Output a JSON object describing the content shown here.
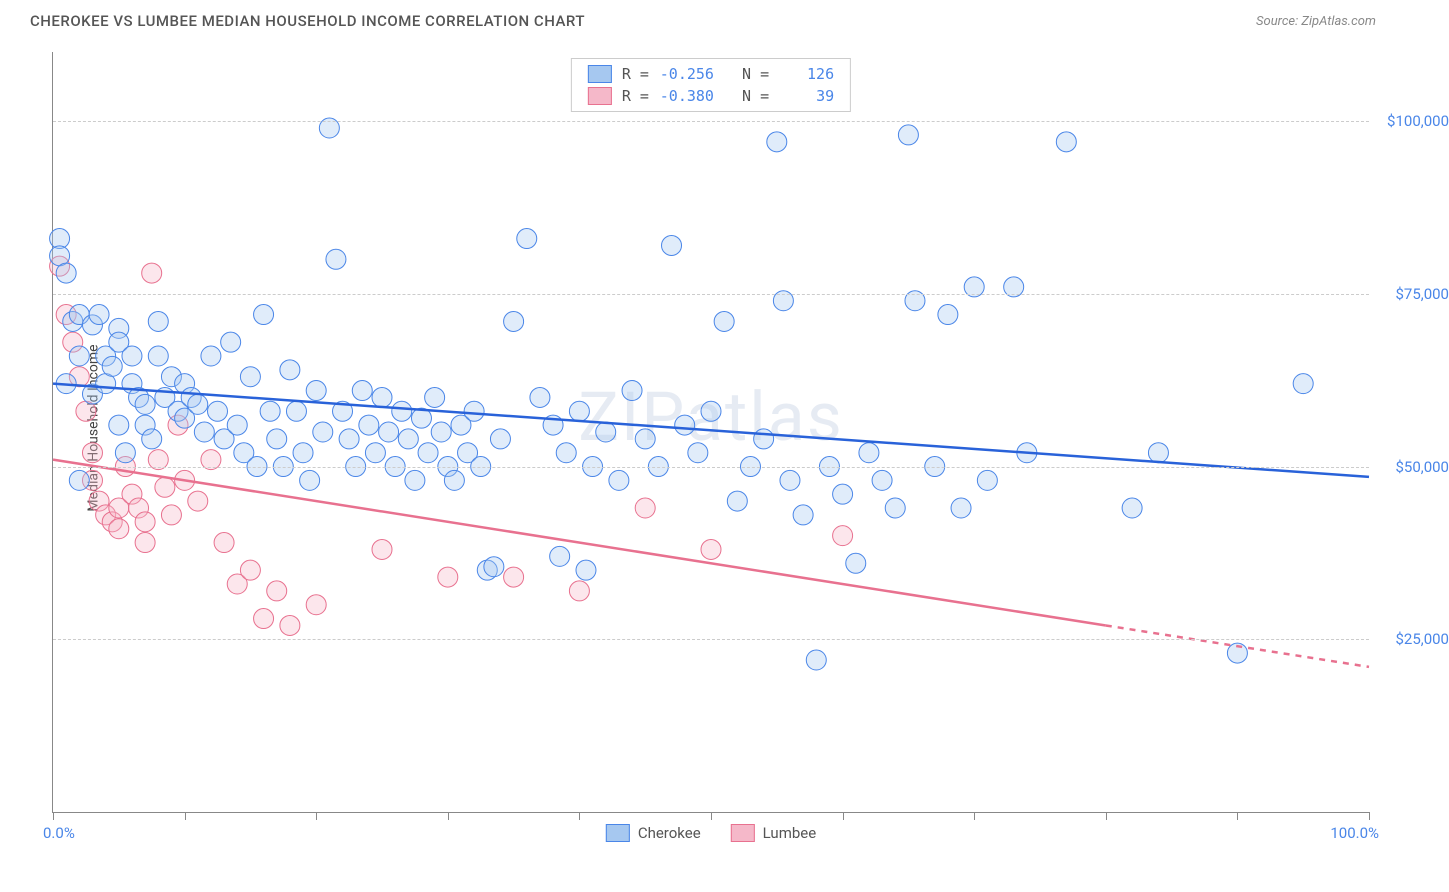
{
  "header": {
    "title": "CHEROKEE VS LUMBEE MEDIAN HOUSEHOLD INCOME CORRELATION CHART",
    "source": "Source: ZipAtlas.com"
  },
  "watermark": "ZIPatlas",
  "chart": {
    "type": "scatter",
    "ylabel": "Median Household Income",
    "xlim": [
      0,
      100
    ],
    "ylim": [
      0,
      110000
    ],
    "xtick_start_label": "0.0%",
    "xtick_end_label": "100.0%",
    "xticks": [
      0,
      10,
      20,
      30,
      40,
      50,
      60,
      70,
      80,
      90,
      100
    ],
    "yticks": [
      {
        "value": 25000,
        "label": "$25,000"
      },
      {
        "value": 50000,
        "label": "$50,000"
      },
      {
        "value": 75000,
        "label": "$75,000"
      },
      {
        "value": 100000,
        "label": "$100,000"
      }
    ],
    "grid_color": "#cccccc",
    "background_color": "#ffffff",
    "marker_radius": 10,
    "marker_opacity": 0.35,
    "line_width": 2.5,
    "series": {
      "cherokee": {
        "label": "Cherokee",
        "fill_color": "#a6c8f0",
        "stroke_color": "#4a86e8",
        "line_color": "#2962d9",
        "R": "-0.256",
        "N": "126",
        "regression": {
          "x1": 0,
          "y1": 62000,
          "x2": 100,
          "y2": 48500
        },
        "points": [
          [
            0.5,
            83000
          ],
          [
            0.5,
            80500
          ],
          [
            1,
            62000
          ],
          [
            1,
            78000
          ],
          [
            1.5,
            71000
          ],
          [
            2,
            72000
          ],
          [
            2,
            66000
          ],
          [
            2,
            48000
          ],
          [
            3,
            70500
          ],
          [
            3,
            60500
          ],
          [
            3.5,
            72000
          ],
          [
            4,
            66000
          ],
          [
            4,
            62000
          ],
          [
            4.5,
            64500
          ],
          [
            5,
            70000
          ],
          [
            5,
            68000
          ],
          [
            5,
            56000
          ],
          [
            5.5,
            52000
          ],
          [
            6,
            66000
          ],
          [
            6,
            62000
          ],
          [
            6.5,
            60000
          ],
          [
            7,
            59000
          ],
          [
            7,
            56000
          ],
          [
            7.5,
            54000
          ],
          [
            8,
            71000
          ],
          [
            8,
            66000
          ],
          [
            8.5,
            60000
          ],
          [
            9,
            63000
          ],
          [
            9.5,
            58000
          ],
          [
            10,
            62000
          ],
          [
            10,
            57000
          ],
          [
            10.5,
            60000
          ],
          [
            11,
            59000
          ],
          [
            11.5,
            55000
          ],
          [
            12,
            66000
          ],
          [
            12.5,
            58000
          ],
          [
            13,
            54000
          ],
          [
            13.5,
            68000
          ],
          [
            14,
            56000
          ],
          [
            14.5,
            52000
          ],
          [
            15,
            63000
          ],
          [
            15.5,
            50000
          ],
          [
            16,
            72000
          ],
          [
            16.5,
            58000
          ],
          [
            17,
            54000
          ],
          [
            17.5,
            50000
          ],
          [
            18,
            64000
          ],
          [
            18.5,
            58000
          ],
          [
            19,
            52000
          ],
          [
            19.5,
            48000
          ],
          [
            20,
            61000
          ],
          [
            20.5,
            55000
          ],
          [
            21,
            99000
          ],
          [
            21.5,
            80000
          ],
          [
            22,
            58000
          ],
          [
            22.5,
            54000
          ],
          [
            23,
            50000
          ],
          [
            23.5,
            61000
          ],
          [
            24,
            56000
          ],
          [
            24.5,
            52000
          ],
          [
            25,
            60000
          ],
          [
            25.5,
            55000
          ],
          [
            26,
            50000
          ],
          [
            26.5,
            58000
          ],
          [
            27,
            54000
          ],
          [
            27.5,
            48000
          ],
          [
            28,
            57000
          ],
          [
            28.5,
            52000
          ],
          [
            29,
            60000
          ],
          [
            29.5,
            55000
          ],
          [
            30,
            50000
          ],
          [
            30.5,
            48000
          ],
          [
            31,
            56000
          ],
          [
            31.5,
            52000
          ],
          [
            32,
            58000
          ],
          [
            32.5,
            50000
          ],
          [
            33,
            35000
          ],
          [
            33.5,
            35500
          ],
          [
            34,
            54000
          ],
          [
            35,
            71000
          ],
          [
            36,
            83000
          ],
          [
            37,
            60000
          ],
          [
            38,
            56000
          ],
          [
            38.5,
            37000
          ],
          [
            39,
            52000
          ],
          [
            40,
            58000
          ],
          [
            40.5,
            35000
          ],
          [
            41,
            50000
          ],
          [
            42,
            55000
          ],
          [
            43,
            48000
          ],
          [
            44,
            61000
          ],
          [
            45,
            54000
          ],
          [
            46,
            50000
          ],
          [
            47,
            82000
          ],
          [
            48,
            56000
          ],
          [
            49,
            52000
          ],
          [
            50,
            58000
          ],
          [
            51,
            71000
          ],
          [
            52,
            45000
          ],
          [
            53,
            50000
          ],
          [
            54,
            54000
          ],
          [
            55,
            97000
          ],
          [
            55.5,
            74000
          ],
          [
            56,
            48000
          ],
          [
            57,
            43000
          ],
          [
            58,
            22000
          ],
          [
            59,
            50000
          ],
          [
            60,
            46000
          ],
          [
            61,
            36000
          ],
          [
            62,
            52000
          ],
          [
            63,
            48000
          ],
          [
            64,
            44000
          ],
          [
            65,
            98000
          ],
          [
            65.5,
            74000
          ],
          [
            67,
            50000
          ],
          [
            68,
            72000
          ],
          [
            69,
            44000
          ],
          [
            70,
            76000
          ],
          [
            71,
            48000
          ],
          [
            73,
            76000
          ],
          [
            74,
            52000
          ],
          [
            77,
            97000
          ],
          [
            82,
            44000
          ],
          [
            84,
            52000
          ],
          [
            90,
            23000
          ],
          [
            95,
            62000
          ]
        ]
      },
      "lumbee": {
        "label": "Lumbee",
        "fill_color": "#f5b8c9",
        "stroke_color": "#e8718f",
        "line_color": "#e8718f",
        "R": "-0.380",
        "N": "39",
        "regression": {
          "x1": 0,
          "y1": 51000,
          "x2": 80,
          "y2": 27000
        },
        "regression_extension": {
          "x1": 80,
          "y1": 27000,
          "x2": 100,
          "y2": 21000
        },
        "points": [
          [
            0.5,
            79000
          ],
          [
            1,
            72000
          ],
          [
            1.5,
            68000
          ],
          [
            2,
            63000
          ],
          [
            2.5,
            58000
          ],
          [
            3,
            52000
          ],
          [
            3,
            48000
          ],
          [
            3.5,
            45000
          ],
          [
            4,
            43000
          ],
          [
            4.5,
            42000
          ],
          [
            5,
            41000
          ],
          [
            5,
            44000
          ],
          [
            5.5,
            50000
          ],
          [
            6,
            46000
          ],
          [
            6.5,
            44000
          ],
          [
            7,
            42000
          ],
          [
            7,
            39000
          ],
          [
            7.5,
            78000
          ],
          [
            8,
            51000
          ],
          [
            8.5,
            47000
          ],
          [
            9,
            43000
          ],
          [
            9.5,
            56000
          ],
          [
            10,
            48000
          ],
          [
            11,
            45000
          ],
          [
            12,
            51000
          ],
          [
            13,
            39000
          ],
          [
            14,
            33000
          ],
          [
            15,
            35000
          ],
          [
            16,
            28000
          ],
          [
            17,
            32000
          ],
          [
            18,
            27000
          ],
          [
            20,
            30000
          ],
          [
            25,
            38000
          ],
          [
            30,
            34000
          ],
          [
            35,
            34000
          ],
          [
            40,
            32000
          ],
          [
            45,
            44000
          ],
          [
            50,
            38000
          ],
          [
            60,
            40000
          ]
        ]
      }
    }
  }
}
